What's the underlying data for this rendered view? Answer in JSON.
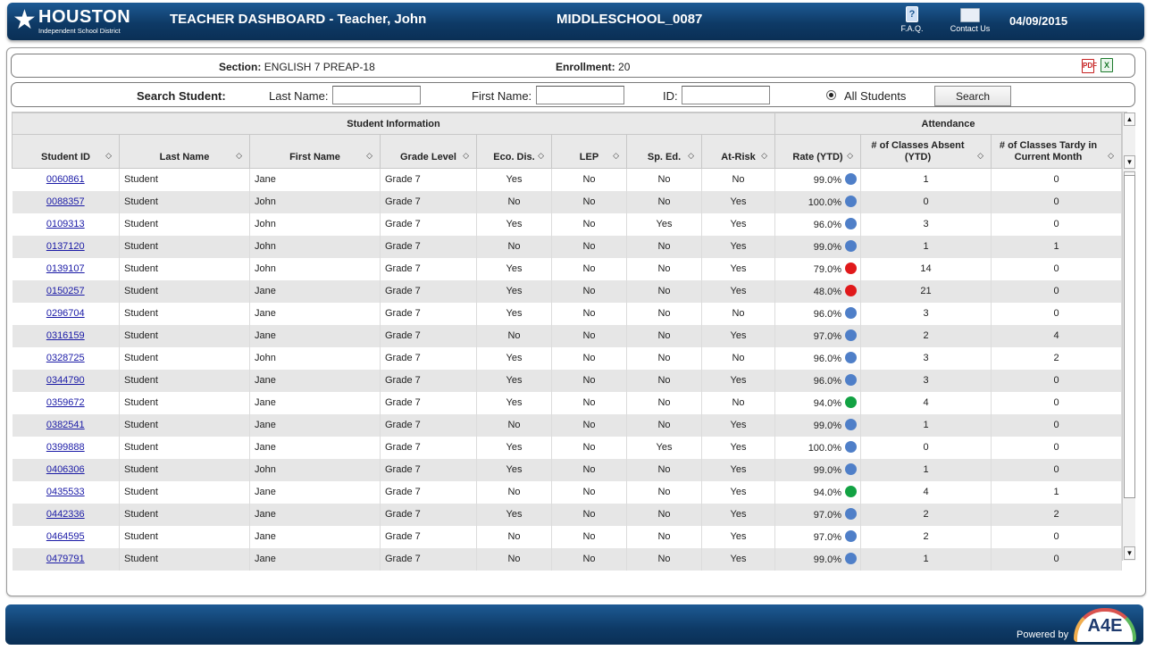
{
  "header": {
    "logo_name": "HOUSTON",
    "logo_sub": "Independent School District",
    "title": "TEACHER DASHBOARD - Teacher, John",
    "school": "MIDDLESCHOOL_0087",
    "faq": "F.A.Q.",
    "contact": "Contact Us",
    "date": "04/09/2015"
  },
  "section": {
    "section_label": "Section:",
    "section_value": "ENGLISH 7 PREAP-18",
    "enroll_label": "Enrollment:",
    "enroll_value": "20"
  },
  "search": {
    "title": "Search Student:",
    "last_label": "Last Name:",
    "first_label": "First Name:",
    "id_label": "ID:",
    "last_value": "",
    "first_value": "",
    "id_value": "",
    "radio_label": "All Students",
    "button": "Search"
  },
  "groups": {
    "student": "Student Information",
    "attendance": "Attendance"
  },
  "columns": [
    "Student ID",
    "Last Name",
    "First Name",
    "Grade Level",
    "Eco. Dis.",
    "LEP",
    "Sp. Ed.",
    "At-Risk",
    "Rate (YTD)",
    "# of Classes Absent (YTD)",
    "# of Classes Tardy in Current Month"
  ],
  "colors": {
    "blue": "#4f7fc8",
    "red": "#e0191b",
    "green": "#12a243"
  },
  "rows": [
    [
      "0060861",
      "Student",
      "Jane",
      "Grade 7",
      "Yes",
      "No",
      "No",
      "No",
      "99.0%",
      "blue",
      "1",
      "0"
    ],
    [
      "0088357",
      "Student",
      "John",
      "Grade 7",
      "No",
      "No",
      "No",
      "Yes",
      "100.0%",
      "blue",
      "0",
      "0"
    ],
    [
      "0109313",
      "Student",
      "John",
      "Grade 7",
      "Yes",
      "No",
      "Yes",
      "Yes",
      "96.0%",
      "blue",
      "3",
      "0"
    ],
    [
      "0137120",
      "Student",
      "John",
      "Grade 7",
      "No",
      "No",
      "No",
      "Yes",
      "99.0%",
      "blue",
      "1",
      "1"
    ],
    [
      "0139107",
      "Student",
      "John",
      "Grade 7",
      "Yes",
      "No",
      "No",
      "Yes",
      "79.0%",
      "red",
      "14",
      "0"
    ],
    [
      "0150257",
      "Student",
      "Jane",
      "Grade 7",
      "Yes",
      "No",
      "No",
      "Yes",
      "48.0%",
      "red",
      "21",
      "0"
    ],
    [
      "0296704",
      "Student",
      "Jane",
      "Grade 7",
      "Yes",
      "No",
      "No",
      "No",
      "96.0%",
      "blue",
      "3",
      "0"
    ],
    [
      "0316159",
      "Student",
      "Jane",
      "Grade 7",
      "No",
      "No",
      "No",
      "Yes",
      "97.0%",
      "blue",
      "2",
      "4"
    ],
    [
      "0328725",
      "Student",
      "John",
      "Grade 7",
      "Yes",
      "No",
      "No",
      "No",
      "96.0%",
      "blue",
      "3",
      "2"
    ],
    [
      "0344790",
      "Student",
      "Jane",
      "Grade 7",
      "Yes",
      "No",
      "No",
      "Yes",
      "96.0%",
      "blue",
      "3",
      "0"
    ],
    [
      "0359672",
      "Student",
      "Jane",
      "Grade 7",
      "Yes",
      "No",
      "No",
      "No",
      "94.0%",
      "green",
      "4",
      "0"
    ],
    [
      "0382541",
      "Student",
      "Jane",
      "Grade 7",
      "No",
      "No",
      "No",
      "Yes",
      "99.0%",
      "blue",
      "1",
      "0"
    ],
    [
      "0399888",
      "Student",
      "Jane",
      "Grade 7",
      "Yes",
      "No",
      "Yes",
      "Yes",
      "100.0%",
      "blue",
      "0",
      "0"
    ],
    [
      "0406306",
      "Student",
      "John",
      "Grade 7",
      "Yes",
      "No",
      "No",
      "Yes",
      "99.0%",
      "blue",
      "1",
      "0"
    ],
    [
      "0435533",
      "Student",
      "Jane",
      "Grade 7",
      "No",
      "No",
      "No",
      "Yes",
      "94.0%",
      "green",
      "4",
      "1"
    ],
    [
      "0442336",
      "Student",
      "Jane",
      "Grade 7",
      "Yes",
      "No",
      "No",
      "Yes",
      "97.0%",
      "blue",
      "2",
      "2"
    ],
    [
      "0464595",
      "Student",
      "Jane",
      "Grade 7",
      "No",
      "No",
      "No",
      "Yes",
      "97.0%",
      "blue",
      "2",
      "0"
    ],
    [
      "0479791",
      "Student",
      "Jane",
      "Grade 7",
      "No",
      "No",
      "No",
      "Yes",
      "99.0%",
      "blue",
      "1",
      "0"
    ]
  ],
  "footer": {
    "powered": "Powered by",
    "brand": "A4E"
  }
}
